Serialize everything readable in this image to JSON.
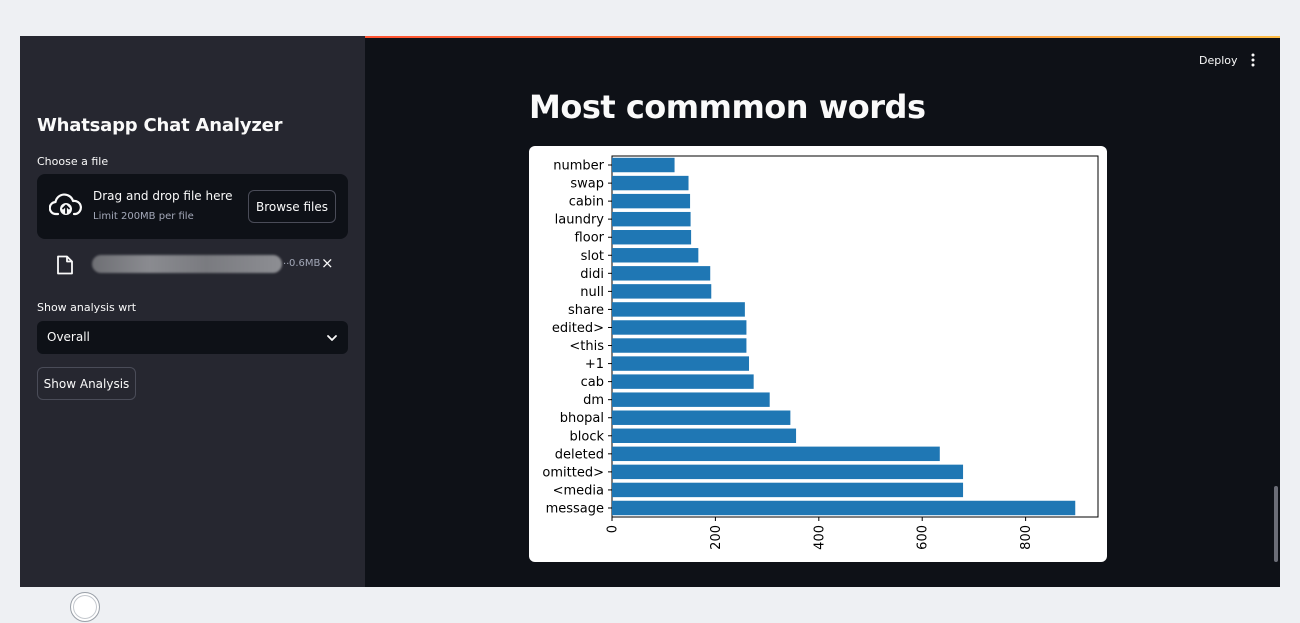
{
  "sidebar": {
    "title": "Whatsapp Chat Analyzer",
    "uploader": {
      "label": "Choose a file",
      "drag_text": "Drag and drop file here",
      "limit_text": "Limit 200MB per file",
      "browse_label": "Browse files"
    },
    "file": {
      "size": "0.6MB",
      "dots": "..",
      "remove_icon": "×"
    },
    "select": {
      "label": "Show analysis wrt",
      "value": "Overall"
    },
    "show_button": "Show Analysis"
  },
  "header": {
    "deploy_label": "Deploy"
  },
  "main": {
    "title": "Most commmon words"
  },
  "icons": {
    "upload": "cloud-upload-icon",
    "file": "file-icon",
    "chevron": "chevron-down-icon",
    "menu": "kebab-menu-icon"
  },
  "colors": {
    "accent_start": "#ff2b2b",
    "accent_end": "#ffbd45",
    "bar": "#1f77b4"
  },
  "chart_data": {
    "type": "bar",
    "orientation": "horizontal",
    "categories": [
      "message",
      "<media",
      "omitted>",
      "deleted",
      "block",
      "bhopal",
      "dm",
      "cab",
      "+1",
      "<this",
      "edited>",
      "share",
      "null",
      "didi",
      "slot",
      "floor",
      "laundry",
      "cabin",
      "swap",
      "number"
    ],
    "values": [
      896,
      679,
      679,
      634,
      356,
      345,
      305,
      274,
      265,
      260,
      260,
      257,
      192,
      190,
      167,
      153,
      152,
      151,
      148,
      121
    ],
    "xlim": [
      0,
      940
    ],
    "xticks": [
      0,
      200,
      400,
      600,
      800
    ],
    "grid": false
  }
}
